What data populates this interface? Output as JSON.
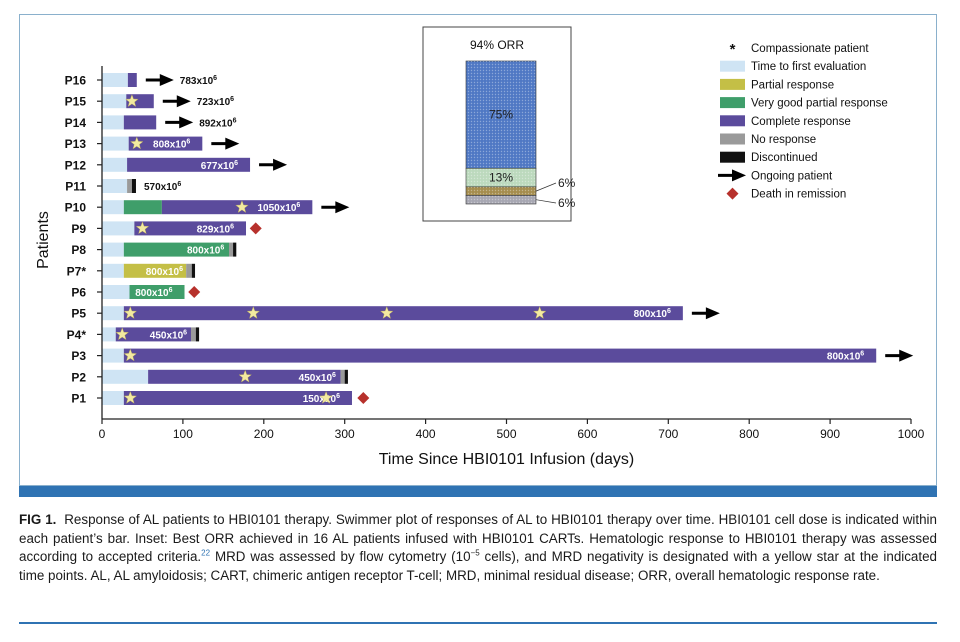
{
  "colors": {
    "time_to_first_evaluation": "#cfe4f4",
    "partial_response": "#c4bf46",
    "very_good_partial_response": "#3f9e6a",
    "complete_response": "#5b4b9c",
    "no_response": "#9a9a9a",
    "discontinued": "#111111",
    "death": "#b7312c",
    "star": "#f3eaa0",
    "axis": "#222222"
  },
  "chart_data": {
    "type": "swimmer",
    "xlabel": "Time Since HBI0101 Infusion (days)",
    "ylabel": "Patients",
    "xlim": [
      0,
      1000
    ],
    "xticks": [
      0,
      100,
      200,
      300,
      400,
      500,
      600,
      700,
      800,
      900,
      1000
    ],
    "patients": [
      {
        "id": "P16",
        "dose": "783x10",
        "dose_exp": "6",
        "label_pos": "outside-after-arrow",
        "segments": [
          {
            "state": "time_to_first_evaluation",
            "from": 0,
            "to": 32
          },
          {
            "state": "complete_response",
            "from": 32,
            "to": 43
          }
        ],
        "stars": [],
        "ongoing": true,
        "death": null
      },
      {
        "id": "P15",
        "dose": "723x10",
        "dose_exp": "6",
        "label_pos": "outside-after-arrow",
        "segments": [
          {
            "state": "time_to_first_evaluation",
            "from": 0,
            "to": 30
          },
          {
            "state": "complete_response",
            "from": 30,
            "to": 64
          }
        ],
        "stars": [
          37
        ],
        "ongoing": true,
        "death": null
      },
      {
        "id": "P14",
        "dose": "892x10",
        "dose_exp": "6",
        "label_pos": "outside-after-arrow",
        "segments": [
          {
            "state": "time_to_first_evaluation",
            "from": 0,
            "to": 27
          },
          {
            "state": "complete_response",
            "from": 27,
            "to": 67
          }
        ],
        "stars": [],
        "ongoing": true,
        "death": null
      },
      {
        "id": "P13",
        "dose": "808x10",
        "dose_exp": "6",
        "label_pos": "inside",
        "segments": [
          {
            "state": "time_to_first_evaluation",
            "from": 0,
            "to": 33
          },
          {
            "state": "complete_response",
            "from": 33,
            "to": 124
          }
        ],
        "stars": [
          43
        ],
        "ongoing": true,
        "death": null
      },
      {
        "id": "P12",
        "dose": "677x10",
        "dose_exp": "6",
        "label_pos": "inside",
        "segments": [
          {
            "state": "time_to_first_evaluation",
            "from": 0,
            "to": 31
          },
          {
            "state": "complete_response",
            "from": 31,
            "to": 183
          }
        ],
        "stars": [],
        "ongoing": true,
        "death": null
      },
      {
        "id": "P11",
        "dose": "570x10",
        "dose_exp": "6",
        "label_pos": "outside",
        "segments": [
          {
            "state": "time_to_first_evaluation",
            "from": 0,
            "to": 31
          },
          {
            "state": "no_response",
            "from": 31,
            "to": 37
          },
          {
            "state": "discontinued",
            "from": 37,
            "to": 42
          }
        ],
        "stars": [],
        "ongoing": false,
        "death": null
      },
      {
        "id": "P10",
        "dose": "1050x10",
        "dose_exp": "6",
        "label_pos": "inside",
        "segments": [
          {
            "state": "time_to_first_evaluation",
            "from": 0,
            "to": 27
          },
          {
            "state": "very_good_partial_response",
            "from": 27,
            "to": 74
          },
          {
            "state": "complete_response",
            "from": 74,
            "to": 260
          }
        ],
        "stars": [
          173
        ],
        "ongoing": true,
        "death": null
      },
      {
        "id": "P9",
        "dose": "829x10",
        "dose_exp": "6",
        "label_pos": "inside",
        "segments": [
          {
            "state": "time_to_first_evaluation",
            "from": 0,
            "to": 40
          },
          {
            "state": "complete_response",
            "from": 40,
            "to": 178
          }
        ],
        "stars": [
          50
        ],
        "ongoing": false,
        "death": 190
      },
      {
        "id": "P8",
        "dose": "800x10",
        "dose_exp": "6",
        "label_pos": "inside",
        "segments": [
          {
            "state": "time_to_first_evaluation",
            "from": 0,
            "to": 27
          },
          {
            "state": "very_good_partial_response",
            "from": 27,
            "to": 157
          },
          {
            "state": "no_response",
            "from": 157,
            "to": 162
          },
          {
            "state": "discontinued",
            "from": 162,
            "to": 166
          }
        ],
        "stars": [],
        "ongoing": false,
        "death": null
      },
      {
        "id": "P7*",
        "dose": "800x10",
        "dose_exp": "6",
        "label_pos": "inside",
        "segments": [
          {
            "state": "time_to_first_evaluation",
            "from": 0,
            "to": 27
          },
          {
            "state": "partial_response",
            "from": 27,
            "to": 104
          },
          {
            "state": "no_response",
            "from": 104,
            "to": 111
          },
          {
            "state": "discontinued",
            "from": 111,
            "to": 115
          }
        ],
        "stars": [],
        "ongoing": false,
        "death": null
      },
      {
        "id": "P6",
        "dose": "800x10",
        "dose_exp": "6",
        "label_pos": "inside",
        "segments": [
          {
            "state": "time_to_first_evaluation",
            "from": 0,
            "to": 34
          },
          {
            "state": "very_good_partial_response",
            "from": 34,
            "to": 102
          }
        ],
        "stars": [],
        "ongoing": false,
        "death": 114
      },
      {
        "id": "P5",
        "dose": "800x10",
        "dose_exp": "6",
        "label_pos": "inside",
        "segments": [
          {
            "state": "time_to_first_evaluation",
            "from": 0,
            "to": 27
          },
          {
            "state": "complete_response",
            "from": 27,
            "to": 718
          }
        ],
        "stars": [
          35,
          187,
          352,
          541
        ],
        "ongoing": true,
        "death": null
      },
      {
        "id": "P4*",
        "dose": "450x10",
        "dose_exp": "6",
        "label_pos": "inside",
        "segments": [
          {
            "state": "time_to_first_evaluation",
            "from": 0,
            "to": 17
          },
          {
            "state": "complete_response",
            "from": 17,
            "to": 110
          },
          {
            "state": "no_response",
            "from": 110,
            "to": 116
          },
          {
            "state": "discontinued",
            "from": 116,
            "to": 120
          }
        ],
        "stars": [
          25
        ],
        "ongoing": false,
        "death": null
      },
      {
        "id": "P3",
        "dose": "800x10",
        "dose_exp": "6",
        "label_pos": "inside",
        "segments": [
          {
            "state": "time_to_first_evaluation",
            "from": 0,
            "to": 27
          },
          {
            "state": "complete_response",
            "from": 27,
            "to": 957
          }
        ],
        "stars": [
          35
        ],
        "ongoing": true,
        "death": null
      },
      {
        "id": "P2",
        "dose": "450x10",
        "dose_exp": "6",
        "label_pos": "inside",
        "segments": [
          {
            "state": "time_to_first_evaluation",
            "from": 0,
            "to": 57
          },
          {
            "state": "complete_response",
            "from": 57,
            "to": 295
          },
          {
            "state": "no_response",
            "from": 295,
            "to": 300
          },
          {
            "state": "discontinued",
            "from": 300,
            "to": 304
          }
        ],
        "stars": [
          177
        ],
        "ongoing": false,
        "death": null
      },
      {
        "id": "P1",
        "dose": "150x10",
        "dose_exp": "6",
        "label_pos": "inside",
        "segments": [
          {
            "state": "time_to_first_evaluation",
            "from": 0,
            "to": 27
          },
          {
            "state": "complete_response",
            "from": 27,
            "to": 309
          }
        ],
        "stars": [
          35,
          277
        ],
        "ongoing": false,
        "death": 323
      }
    ],
    "legend": {
      "placement": "top-right",
      "items": [
        {
          "key": "compassionate",
          "marker": "asterisk",
          "label": "Compassionate patient"
        },
        {
          "key": "time_to_first_evaluation",
          "marker": "box",
          "label": "Time to first evaluation"
        },
        {
          "key": "partial_response",
          "marker": "box",
          "label": "Partial response"
        },
        {
          "key": "very_good_partial_response",
          "marker": "box",
          "label": "Very good partial response"
        },
        {
          "key": "complete_response",
          "marker": "box",
          "label": "Complete response"
        },
        {
          "key": "no_response",
          "marker": "box",
          "label": "No response"
        },
        {
          "key": "discontinued",
          "marker": "box",
          "label": "Discontinued"
        },
        {
          "key": "ongoing",
          "marker": "arrow",
          "label": "Ongoing patient"
        },
        {
          "key": "death",
          "marker": "diamond",
          "label": "Death in remission"
        }
      ]
    },
    "inset": {
      "type": "stacked-bar",
      "title": "94% ORR",
      "segments": [
        {
          "state": "complete_response",
          "value": 75,
          "label": "75%",
          "label_pos": "inside"
        },
        {
          "state": "very_good_partial_response",
          "value": 13,
          "label": "13%",
          "label_pos": "inside"
        },
        {
          "state": "partial_response",
          "value": 6,
          "label": "6%",
          "label_pos": "right"
        },
        {
          "state": "no_response",
          "value": 6,
          "label": "6%",
          "label_pos": "right"
        }
      ]
    }
  },
  "caption": {
    "fig_label": "FIG 1.",
    "text_1": "Response of AL patients to HBI0101 therapy. Swimmer plot of responses of AL to HBI0101 therapy over time. HBI0101 cell dose is indicated within each patient’s bar. Inset: Best ORR achieved in 16 AL patients infused with HBI0101 CARTs. Hematologic response to HBI0101 therapy was assessed according to accepted criteria.",
    "ref": "22",
    "text_2": " MRD was assessed by flow cytometry (10",
    "exp": "−5",
    "text_3": " cells), and MRD negativity is designated with a yellow star at the indicated time points. AL, AL amyloidosis; CART, chimeric antigen receptor T-cell; MRD, minimal residual disease; ORR, overall hematologic response rate."
  }
}
